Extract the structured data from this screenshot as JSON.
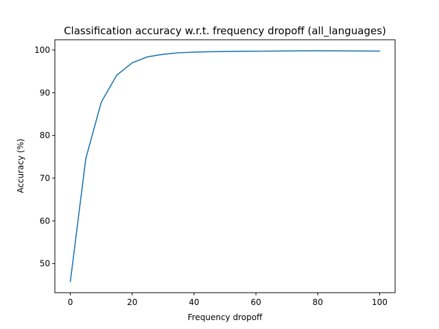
{
  "chart_data": {
    "type": "line",
    "title": "Classification accuracy w.r.t. frequency dropoff (all_languages)",
    "xlabel": "Frequency dropoff",
    "ylabel": "Accuracy (%)",
    "xlim": [
      -5,
      105
    ],
    "ylim": [
      43.2,
      102.4
    ],
    "xticks": [
      0,
      20,
      40,
      60,
      80,
      100
    ],
    "yticks": [
      50,
      60,
      70,
      80,
      90,
      100
    ],
    "grid": false,
    "series": [
      {
        "color": "#1f77b4",
        "x": [
          0,
          5,
          10,
          15,
          20,
          25,
          30,
          35,
          40,
          45,
          50,
          55,
          60,
          65,
          70,
          75,
          80,
          85,
          90,
          95,
          100
        ],
        "y": [
          45.8,
          74.6,
          87.8,
          94.1,
          97.0,
          98.4,
          99.0,
          99.35,
          99.5,
          99.6,
          99.65,
          99.7,
          99.72,
          99.75,
          99.78,
          99.8,
          99.82,
          99.8,
          99.78,
          99.76,
          99.75
        ]
      }
    ]
  }
}
